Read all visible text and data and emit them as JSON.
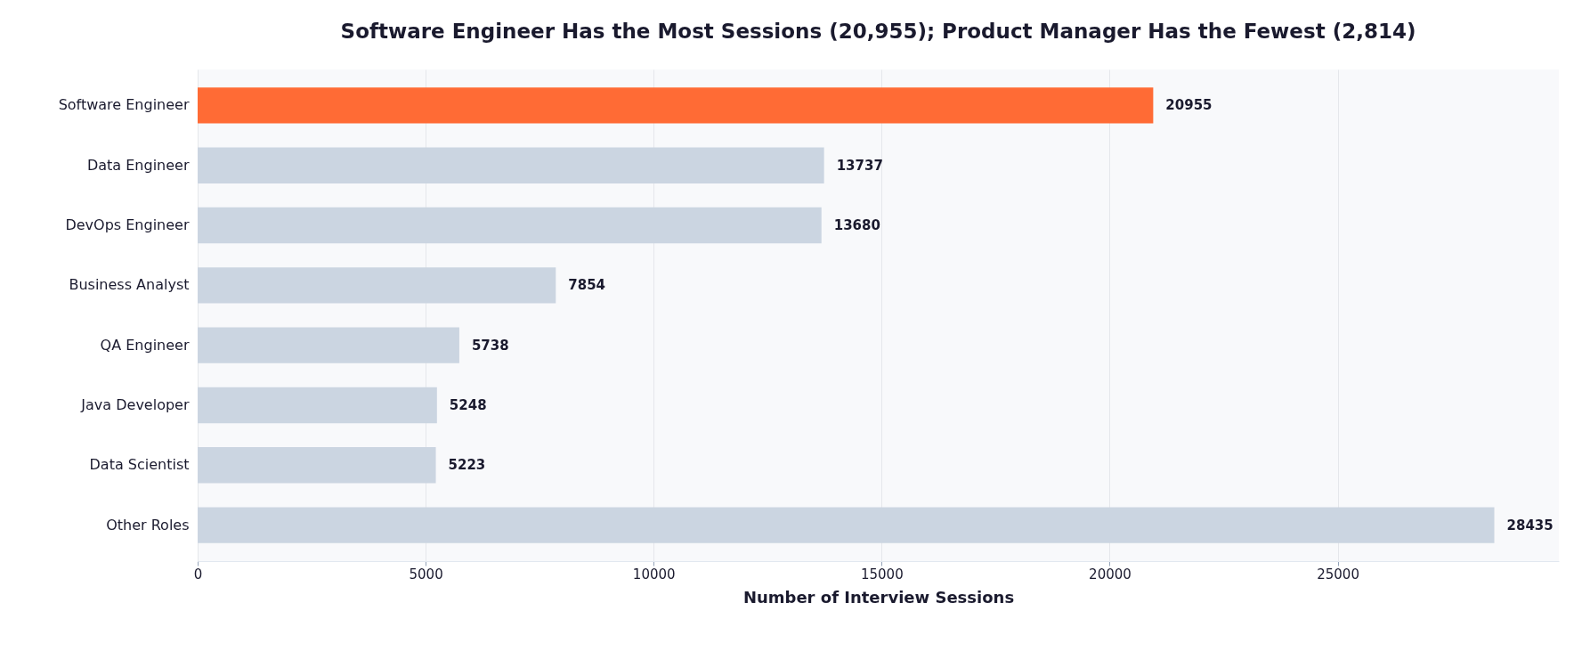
{
  "chart_data": {
    "type": "bar",
    "orientation": "horizontal",
    "title": "Software Engineer Has the Most Sessions (20,955); Product Manager Has the Fewest (2,814)",
    "xlabel": "Number of Interview Sessions",
    "categories": [
      "Software Engineer",
      "Data Engineer",
      "DevOps Engineer",
      "Business Analyst",
      "QA Engineer",
      "Java Developer",
      "Data Scientist",
      "Other Roles"
    ],
    "values": [
      20955,
      13737,
      13680,
      7854,
      5738,
      5248,
      5223,
      28435
    ],
    "colors": [
      "#ff6b35",
      "#cbd5e1",
      "#cbd5e1",
      "#cbd5e1",
      "#cbd5e1",
      "#cbd5e1",
      "#cbd5e1",
      "#cbd5e1"
    ],
    "xlim": [
      0,
      29850
    ],
    "xticks": [
      0,
      5000,
      10000,
      15000,
      20000,
      25000
    ],
    "grid": "x",
    "data_labels": true
  }
}
